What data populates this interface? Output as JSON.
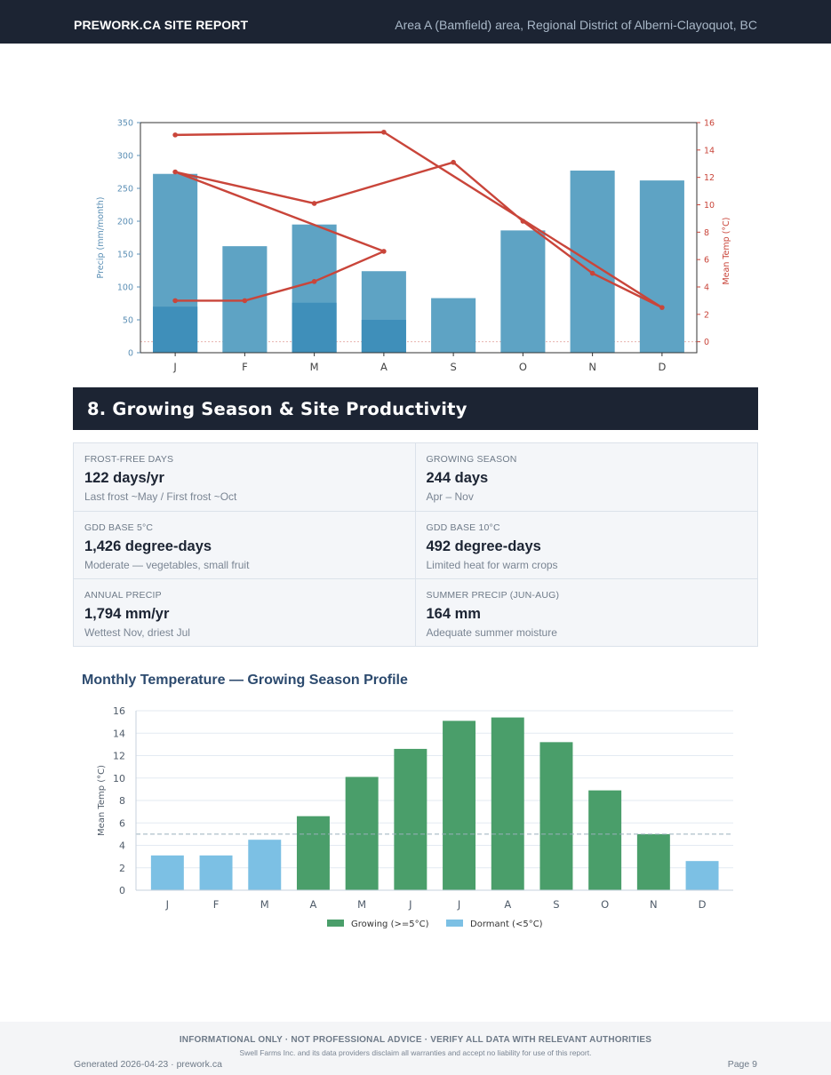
{
  "header": {
    "brand": "PREWORK.CA SITE REPORT",
    "location": "Area A (Bamfield) area, Regional District of Alberni-Clayoquot, BC"
  },
  "section": {
    "title": "8. Growing Season & Site Productivity"
  },
  "stats": [
    {
      "label": "FROST-FREE DAYS",
      "value": "122 days/yr",
      "note": "Last frost ~May / First frost ~Oct"
    },
    {
      "label": "GROWING SEASON",
      "value": "244 days",
      "note": "Apr – Nov"
    },
    {
      "label": "GDD BASE 5°C",
      "value": "1,426 degree-days",
      "note": "Moderate — vegetables, small fruit"
    },
    {
      "label": "GDD BASE 10°C",
      "value": "492 degree-days",
      "note": "Limited heat for warm crops"
    },
    {
      "label": "ANNUAL PRECIP",
      "value": "1,794 mm/yr",
      "note": "Wettest Nov, driest Jul"
    },
    {
      "label": "SUMMER PRECIP (JUN-AUG)",
      "value": "164 mm",
      "note": "Adequate summer moisture"
    }
  ],
  "chart2_heading": "Monthly Temperature — Growing Season Profile",
  "footer": {
    "disclaimer": "INFORMATIONAL ONLY  ·  NOT PROFESSIONAL ADVICE  ·  VERIFY ALL DATA WITH RELEVANT AUTHORITIES",
    "liability": "Swell Farms Inc. and its data providers disclaim all warranties and accept no liability for use of this report.",
    "generated": "Generated 2026-04-23 · prework.ca",
    "page": "Page 9"
  },
  "colors": {
    "dark_navy": "#1c2433",
    "precip_bar": "#5ea3c4",
    "precip_overlap": "#3f8fba",
    "temp_line": "#c9453a",
    "growing": "#4a9e6a",
    "dormant": "#7cc0e4"
  },
  "chart_data": [
    {
      "type": "bar",
      "categories": [
        "J",
        "F",
        "M",
        "A",
        "S",
        "O",
        "N",
        "D"
      ],
      "series": [
        {
          "values": [
            272,
            162,
            195,
            124,
            83,
            186,
            277,
            262
          ]
        },
        {
          "values": [
            70,
            0,
            76,
            50,
            0,
            0,
            0,
            0
          ]
        },
        {
          "points": [
            [
              0,
              3.0
            ],
            [
              1,
              3.0
            ],
            [
              2,
              4.4
            ],
            [
              3,
              6.6
            ],
            [
              0,
              12.4
            ],
            [
              2,
              10.1
            ],
            [
              4,
              13.1
            ],
            [
              5,
              8.8
            ],
            [
              6,
              5.0
            ],
            [
              7,
              2.5
            ],
            [
              3,
              15.3
            ],
            [
              0,
              15.1
            ]
          ]
        }
      ],
      "xlabel": "",
      "ylabel": "Precip (mm/month)",
      "y2label": "Mean Temp (°C)",
      "ylim": [
        0,
        350
      ],
      "yticks": [
        0,
        50,
        100,
        150,
        200,
        250,
        300,
        350
      ],
      "y2lim": [
        -0.8,
        16
      ],
      "y2ticks": [
        0,
        2,
        4,
        6,
        8,
        10,
        12,
        14,
        16
      ],
      "zero_line": true,
      "grid": false
    },
    {
      "type": "bar",
      "categories": [
        "J",
        "F",
        "M",
        "A",
        "M",
        "J",
        "J",
        "A",
        "S",
        "O",
        "N",
        "D"
      ],
      "values": [
        3.1,
        3.1,
        4.5,
        6.6,
        10.1,
        12.6,
        15.1,
        15.4,
        13.2,
        8.9,
        5.0,
        2.6
      ],
      "series": [
        {
          "name": "Growing (>=5°C)",
          "color": "#4a9e6a"
        },
        {
          "name": "Dormant (<5°C)",
          "color": "#7cc0e4"
        }
      ],
      "threshold": 5,
      "xlabel": "",
      "ylabel": "Mean Temp (°C)",
      "ylim": [
        0,
        16
      ],
      "yticks": [
        0,
        2,
        4,
        6,
        8,
        10,
        12,
        14,
        16
      ],
      "grid": true,
      "legend": "bottom-center"
    }
  ]
}
